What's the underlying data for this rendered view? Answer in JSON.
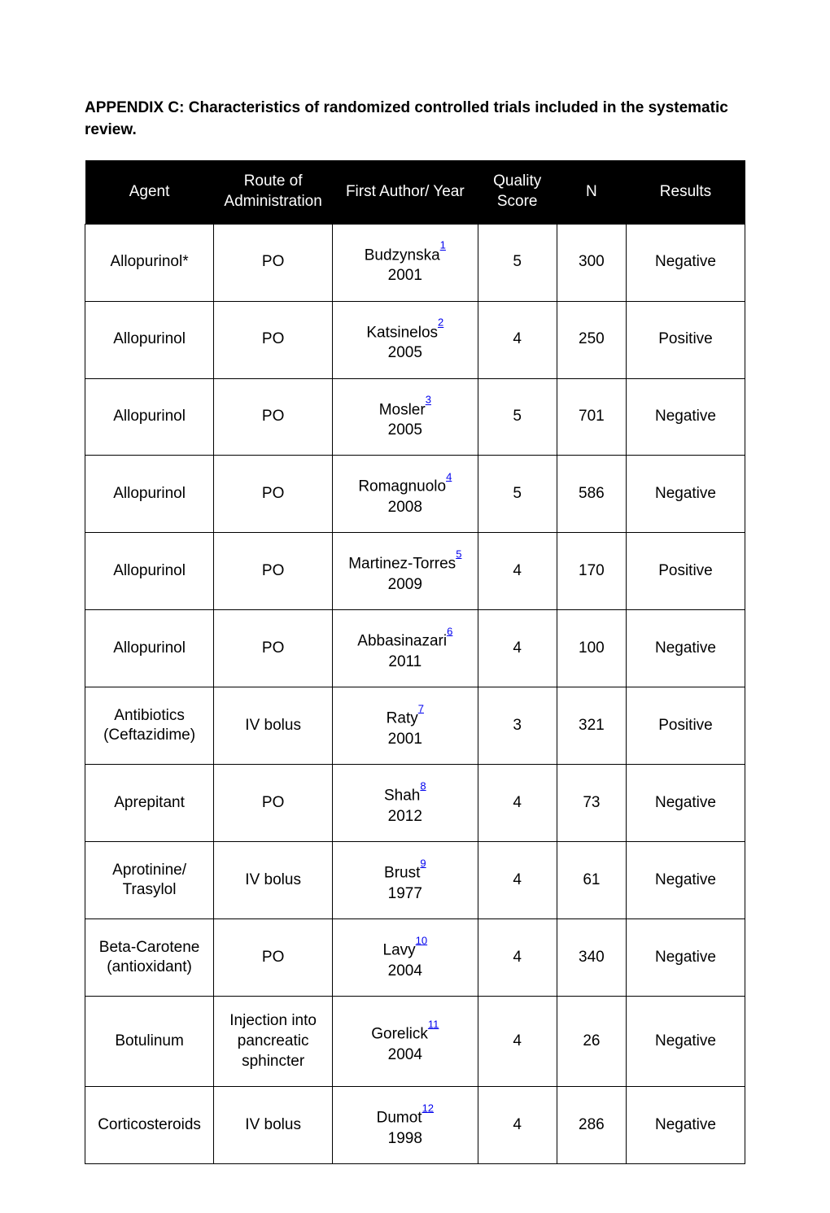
{
  "title": "APPENDIX C:  Characteristics of randomized controlled trials included in the systematic review.",
  "table": {
    "columns": {
      "agent": "Agent",
      "route": "Route of Administration",
      "author": "First Author/ Year",
      "score": "Quality Score",
      "n": "N",
      "results": "Results"
    },
    "rows": [
      {
        "agent": "Allopurinol*",
        "route": "PO",
        "author_name": "Budzynska",
        "ref": "1",
        "year": "2001",
        "score": "5",
        "n": "300",
        "results": "Negative"
      },
      {
        "agent": "Allopurinol",
        "route": "PO",
        "author_name": "Katsinelos",
        "ref": "2",
        "year": "2005",
        "score": "4",
        "n": "250",
        "results": "Positive"
      },
      {
        "agent": "Allopurinol",
        "route": "PO",
        "author_name": "Mosler",
        "ref": "3",
        "year": "2005",
        "score": "5",
        "n": "701",
        "results": "Negative"
      },
      {
        "agent": "Allopurinol",
        "route": "PO",
        "author_name": "Romagnuolo",
        "ref": "4",
        "year": "2008",
        "score": "5",
        "n": "586",
        "results": "Negative"
      },
      {
        "agent": "Allopurinol",
        "route": "PO",
        "author_name": "Martinez-Torres",
        "ref": "5",
        "year": "2009",
        "score": "4",
        "n": "170",
        "results": "Positive"
      },
      {
        "agent": "Allopurinol",
        "route": "PO",
        "author_name": "Abbasinazari",
        "ref": "6",
        "year": "2011",
        "score": "4",
        "n": "100",
        "results": "Negative"
      },
      {
        "agent": "Antibiotics (Ceftazidime)",
        "route": "IV bolus",
        "author_name": "Raty",
        "ref": "7",
        "year": "2001",
        "score": "3",
        "n": "321",
        "results": "Positive"
      },
      {
        "agent": "Aprepitant",
        "route": "PO",
        "author_name": "Shah",
        "ref": "8",
        "year": "2012",
        "score": "4",
        "n": "73",
        "results": "Negative"
      },
      {
        "agent": "Aprotinine/ Trasylol",
        "route": "IV bolus",
        "author_name": "Brust",
        "ref": "9",
        "year": "1977",
        "score": "4",
        "n": "61",
        "results": "Negative"
      },
      {
        "agent": "Beta-Carotene (antioxidant)",
        "route": "PO",
        "author_name": "Lavy",
        "ref": "10",
        "year": "2004",
        "score": "4",
        "n": "340",
        "results": "Negative"
      },
      {
        "agent": "Botulinum",
        "route": "Injection into pancreatic sphincter",
        "author_name": "Gorelick",
        "ref": "11",
        "year": "2004",
        "score": "4",
        "n": "26",
        "results": "Negative"
      },
      {
        "agent": "Corticosteroids",
        "route": "IV bolus",
        "author_name": "Dumot",
        "ref": "12",
        "year": "1998",
        "score": "4",
        "n": "286",
        "results": "Negative"
      }
    ],
    "styling": {
      "header_bg": "#000000",
      "header_fg": "#ffffff",
      "cell_border": "#000000",
      "cell_fg": "#000000",
      "link_color": "#0000ee",
      "font_size": 19,
      "column_widths": {
        "agent": "19.5%",
        "route": "18%",
        "author": "22%",
        "score": "12%",
        "n": "10.5%",
        "results": "18%"
      }
    }
  }
}
